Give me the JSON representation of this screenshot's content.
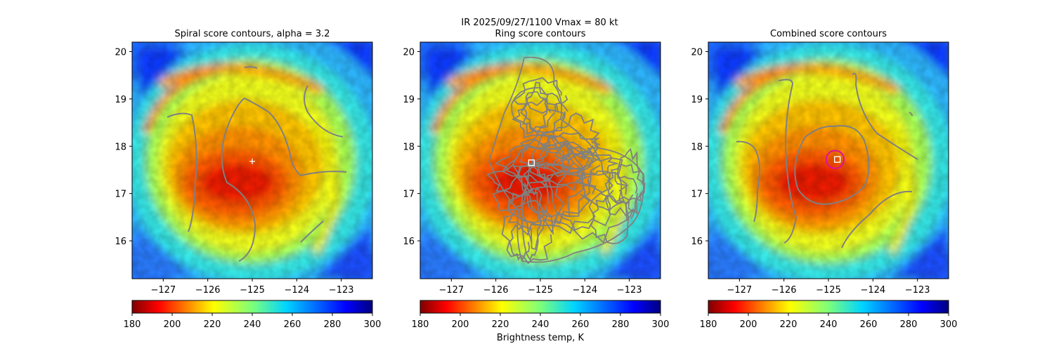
{
  "header": {
    "line1": "IR  2025/09/27/1100    Vmax = 80 kt"
  },
  "colorbar": {
    "cmap": "jet_r",
    "min": 180,
    "max": 300,
    "ticks": [
      "180",
      "200",
      "220",
      "240",
      "260",
      "280",
      "300"
    ],
    "label": "Brightness temp, K"
  },
  "chart_data": [
    {
      "type": "heatmap",
      "title": "Spiral score contours, alpha =  3.2",
      "xlim": [
        -127.7,
        -122.3
      ],
      "ylim": [
        15.2,
        20.2
      ],
      "xticks": [
        "−127",
        "−126",
        "−125",
        "−124",
        "−123"
      ],
      "yticks": [
        "16",
        "17",
        "18",
        "19",
        "20"
      ],
      "center_marker": {
        "shape": "plus",
        "lon": -125.0,
        "lat": 17.68,
        "color": "#ffffff"
      },
      "contour_color": "#808080",
      "value_unit": "Brightness temp, K"
    },
    {
      "type": "heatmap",
      "title": "Ring score contours",
      "xlim": [
        -127.7,
        -122.3
      ],
      "ylim": [
        15.2,
        20.2
      ],
      "xticks": [
        "−127",
        "−126",
        "−125",
        "−124",
        "−123"
      ],
      "yticks": [
        "16",
        "17",
        "18",
        "19",
        "20"
      ],
      "center_marker": {
        "shape": "square",
        "lon": -125.2,
        "lat": 17.65,
        "color": "#ffffff"
      },
      "contour_color": "#808080",
      "value_unit": "Brightness temp, K"
    },
    {
      "type": "heatmap",
      "title": "Combined score contours",
      "xlim": [
        -127.7,
        -122.3
      ],
      "ylim": [
        15.2,
        20.2
      ],
      "xticks": [
        "−127",
        "−126",
        "−125",
        "−124",
        "−123"
      ],
      "yticks": [
        "16",
        "17",
        "18",
        "19",
        "20"
      ],
      "center_marker": {
        "shape": "square",
        "lon": -124.8,
        "lat": 17.72,
        "color": "#ffffff"
      },
      "circle_marker": {
        "lon": -124.85,
        "lat": 17.72,
        "radius_deg": 0.2,
        "color": "#dd1199"
      },
      "contour_color": "#808080",
      "value_unit": "Brightness temp, K"
    }
  ]
}
